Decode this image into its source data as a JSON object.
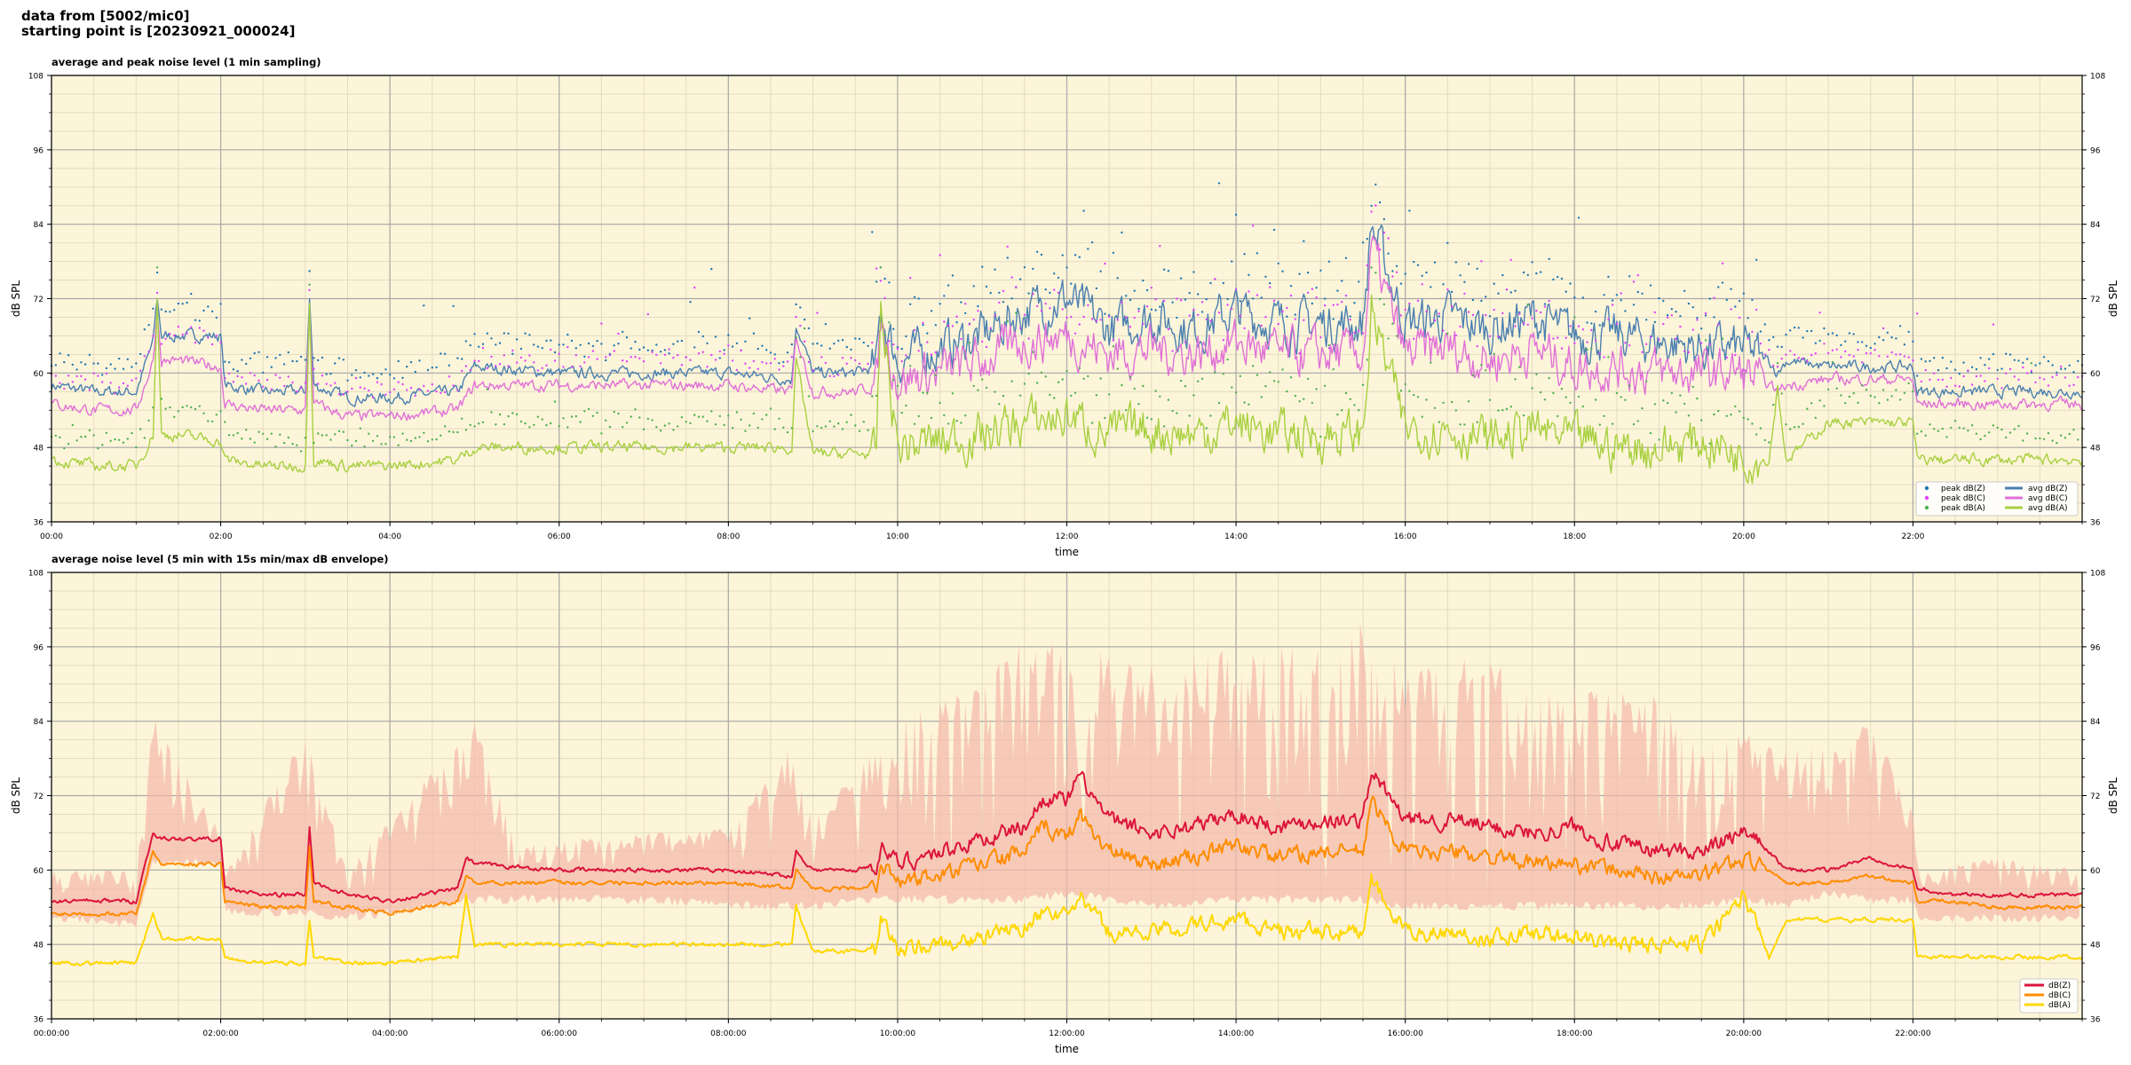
{
  "header": {
    "line1": "data from [5002/mic0]",
    "line2": "starting point is [20230921_000024]"
  },
  "colors": {
    "plot_background": "#fdf5d9",
    "grid_major": "#a9a9a9",
    "grid_minor": "#e4dcc0",
    "zpeak": "#1f77b4",
    "cpeak": "#e040fb",
    "apeak": "#4caf50",
    "zavg": "#4a7fb0",
    "cavg": "#e070d8",
    "aavg": "#a8d040",
    "dbz": "#dc143c",
    "dbc": "#ff8c00",
    "dba": "#ffd700",
    "envelope": "#f4b8a8"
  },
  "chart_data": [
    {
      "type": "line",
      "title": "average and peak noise level (1 min sampling)",
      "xlabel": "time",
      "ylabel": "dB SPL",
      "ylim": [
        36,
        108
      ],
      "xlim_hours": [
        0,
        24
      ],
      "yticks": [
        36,
        48,
        60,
        72,
        84,
        96,
        108
      ],
      "xticks": [
        "00:00",
        "02:00",
        "04:00",
        "06:00",
        "08:00",
        "10:00",
        "12:00",
        "14:00",
        "16:00",
        "18:00",
        "20:00",
        "22:00"
      ],
      "grid": true,
      "legend_position": "bottom-right",
      "series": [
        {
          "name": "peak dB(Z)",
          "kind": "points",
          "color": "#1f77b4",
          "values_from": "avg dB(Z)",
          "offset": 3
        },
        {
          "name": "peak dB(C)",
          "kind": "points",
          "color": "#e040fb",
          "values_from": "avg dB(C)",
          "offset": 3
        },
        {
          "name": "peak dB(A)",
          "kind": "points",
          "color": "#4caf50",
          "values_from": "avg dB(A)",
          "offset": 3
        },
        {
          "name": "avg dB(Z)",
          "kind": "line",
          "color": "#4a7fb0",
          "x_hours": [
            0,
            0.5,
            1.0,
            1.2,
            1.25,
            1.3,
            1.5,
            2.0,
            2.05,
            2.5,
            3.0,
            3.05,
            3.1,
            3.5,
            4.0,
            4.8,
            5.0,
            6.0,
            7.0,
            8.0,
            8.75,
            8.8,
            9.0,
            9.5,
            9.75,
            9.8,
            10.0,
            10.5,
            11.0,
            11.5,
            12.0,
            12.5,
            13.0,
            13.5,
            14.0,
            14.5,
            15.0,
            15.5,
            15.6,
            16.0,
            16.5,
            17.0,
            17.5,
            18.0,
            18.5,
            19.0,
            19.5,
            20.0,
            20.3,
            20.4,
            20.5,
            21.0,
            21.5,
            22.0,
            22.05,
            22.5,
            23.0,
            23.5,
            24.0
          ],
          "values": [
            58,
            57,
            57,
            65,
            72,
            66,
            66,
            66,
            58,
            57,
            57,
            72,
            58,
            56,
            56,
            57,
            61,
            60,
            60,
            60,
            59,
            68,
            60,
            60,
            61,
            70,
            62,
            64,
            66,
            70,
            72,
            67,
            69,
            67,
            70,
            68,
            68,
            68,
            84,
            68,
            69,
            67,
            69,
            66,
            66,
            65,
            64,
            64,
            62,
            60,
            62,
            61,
            61,
            61,
            57,
            57,
            57,
            57,
            57
          ]
        },
        {
          "name": "avg dB(C)",
          "kind": "line",
          "color": "#e070d8",
          "x_hours": [
            0,
            0.5,
            1.0,
            1.2,
            1.25,
            1.3,
            1.5,
            2.0,
            2.05,
            2.5,
            3.0,
            3.05,
            3.1,
            3.5,
            4.0,
            4.8,
            5.0,
            6.0,
            7.0,
            8.0,
            8.75,
            8.8,
            9.0,
            9.5,
            9.75,
            9.8,
            10.0,
            10.5,
            11.0,
            11.5,
            12.0,
            12.5,
            13.0,
            13.5,
            14.0,
            14.5,
            15.0,
            15.5,
            15.6,
            16.0,
            16.5,
            17.0,
            17.5,
            18.0,
            18.5,
            19.0,
            19.5,
            20.0,
            20.3,
            20.4,
            20.5,
            21.0,
            21.5,
            22.0,
            22.05,
            22.5,
            23.0,
            23.5,
            24.0
          ],
          "values": [
            55,
            54,
            54,
            62,
            70,
            62,
            62,
            61,
            55,
            54,
            54,
            70,
            55,
            53,
            53,
            54,
            58,
            58,
            58,
            58,
            57,
            66,
            57,
            57,
            58,
            68,
            59,
            60,
            62,
            65,
            66,
            63,
            64,
            63,
            65,
            63,
            63,
            63,
            80,
            63,
            64,
            62,
            64,
            61,
            61,
            60,
            60,
            60,
            58,
            57,
            58,
            59,
            59,
            59,
            55,
            55,
            55,
            55,
            55
          ]
        },
        {
          "name": "avg dB(A)",
          "kind": "line",
          "color": "#a8d040",
          "x_hours": [
            0,
            0.5,
            1.0,
            1.2,
            1.25,
            1.3,
            1.5,
            2.0,
            2.05,
            2.5,
            3.0,
            3.05,
            3.1,
            3.5,
            4.0,
            4.8,
            5.0,
            6.0,
            7.0,
            8.0,
            8.75,
            8.8,
            9.0,
            9.5,
            9.75,
            9.8,
            10.0,
            10.5,
            11.0,
            11.5,
            12.0,
            12.5,
            13.0,
            13.5,
            14.0,
            14.5,
            15.0,
            15.5,
            15.6,
            16.0,
            16.5,
            17.0,
            17.5,
            18.0,
            18.5,
            19.0,
            19.5,
            20.0,
            20.3,
            20.4,
            20.5,
            21.0,
            21.5,
            22.0,
            22.05,
            22.5,
            23.0,
            23.5,
            24.0
          ],
          "values": [
            46,
            45,
            45,
            50,
            72,
            50,
            50,
            49,
            46,
            45,
            45,
            72,
            46,
            45,
            45,
            46,
            48,
            48,
            48,
            48,
            48,
            62,
            47,
            47,
            47,
            70,
            48,
            49,
            50,
            52,
            53,
            50,
            51,
            50,
            52,
            50,
            50,
            50,
            70,
            51,
            51,
            49,
            51,
            49,
            48,
            48,
            49,
            47,
            46,
            58,
            46,
            52,
            52,
            52,
            46,
            46,
            46,
            46,
            46
          ]
        }
      ]
    },
    {
      "type": "line",
      "title": "average noise level (5 min with 15s min/max dB envelope)",
      "xlabel": "time",
      "ylabel": "dB SPL",
      "ylim": [
        36,
        108
      ],
      "xlim_hours": [
        0,
        24
      ],
      "yticks": [
        36,
        48,
        60,
        72,
        84,
        96,
        108
      ],
      "xticks": [
        "00:00:00",
        "02:00:00",
        "04:00:00",
        "06:00:00",
        "08:00:00",
        "10:00:00",
        "12:00:00",
        "14:00:00",
        "16:00:00",
        "18:00:00",
        "20:00:00",
        "22:00:00"
      ],
      "grid": true,
      "legend_position": "bottom-right",
      "envelope": {
        "x_hours": [
          0,
          1.0,
          1.2,
          2.0,
          2.05,
          3.0,
          3.5,
          5.0,
          5.5,
          7.0,
          8.0,
          8.75,
          9.0,
          9.75,
          10.0,
          11.0,
          11.5,
          12.0,
          12.5,
          13.0,
          14.0,
          15.0,
          15.5,
          16.0,
          17.0,
          17.5,
          18.0,
          19.0,
          19.5,
          20.0,
          20.5,
          21.0,
          21.5,
          22.0,
          22.05,
          23.0,
          24.0
        ],
        "min": [
          53,
          52,
          62,
          62,
          54,
          54,
          53,
          56,
          56,
          56,
          55,
          55,
          55,
          56,
          56,
          56,
          56,
          57,
          56,
          55,
          56,
          56,
          56,
          55,
          55,
          55,
          55,
          55,
          55,
          56,
          55,
          57,
          56,
          56,
          53,
          53,
          53
        ],
        "max": [
          60,
          60,
          85,
          66,
          60,
          82,
          60,
          84,
          64,
          66,
          67,
          80,
          68,
          80,
          84,
          90,
          100,
          96,
          95,
          94,
          96,
          96,
          100,
          92,
          95,
          90,
          90,
          88,
          80,
          82,
          80,
          80,
          84,
          70,
          60,
          62,
          60
        ]
      },
      "series": [
        {
          "name": "dB(Z)",
          "color": "#dc143c",
          "x_hours": [
            0,
            0.5,
            1.0,
            1.2,
            1.3,
            1.5,
            2.0,
            2.05,
            2.5,
            3.0,
            3.05,
            3.1,
            3.5,
            4.0,
            4.8,
            4.9,
            5.0,
            6.0,
            7.0,
            8.0,
            8.75,
            8.8,
            9.0,
            9.5,
            9.75,
            9.8,
            10.0,
            10.5,
            11.0,
            11.5,
            11.75,
            12.0,
            12.15,
            12.5,
            13.0,
            13.5,
            14.0,
            14.5,
            15.0,
            15.5,
            15.6,
            16.0,
            16.5,
            17.0,
            17.5,
            18.0,
            18.5,
            19.0,
            19.5,
            20.0,
            20.3,
            20.5,
            21.0,
            21.5,
            22.0,
            22.05,
            22.5,
            23.0,
            23.5,
            24.0
          ],
          "values": [
            55,
            55,
            55,
            66,
            65,
            65,
            65,
            57,
            56,
            56,
            67,
            58,
            56,
            55,
            57,
            62,
            61,
            60,
            60,
            60,
            59,
            63,
            60,
            60,
            61,
            64,
            61,
            63,
            65,
            67,
            72,
            71,
            75,
            68,
            66,
            67,
            69,
            67,
            68,
            68,
            76,
            68,
            68,
            67,
            66,
            67,
            64,
            63,
            63,
            66,
            63,
            60,
            60,
            62,
            60,
            57,
            56,
            56,
            56,
            56
          ],
          "stroke_width": 2
        },
        {
          "name": "dB(C)",
          "color": "#ff8c00",
          "x_hours": [
            0,
            0.5,
            1.0,
            1.2,
            1.3,
            1.5,
            2.0,
            2.05,
            2.5,
            3.0,
            3.05,
            3.1,
            3.5,
            4.0,
            4.8,
            4.9,
            5.0,
            6.0,
            7.0,
            8.0,
            8.75,
            8.8,
            9.0,
            9.5,
            9.75,
            9.8,
            10.0,
            10.5,
            11.0,
            11.5,
            11.75,
            12.0,
            12.15,
            12.5,
            13.0,
            13.5,
            14.0,
            14.5,
            15.0,
            15.5,
            15.6,
            16.0,
            16.5,
            17.0,
            17.5,
            18.0,
            18.5,
            19.0,
            19.5,
            20.0,
            20.3,
            20.5,
            21.0,
            21.5,
            22.0,
            22.05,
            22.5,
            23.0,
            23.5,
            24.0
          ],
          "values": [
            53,
            53,
            53,
            63,
            61,
            61,
            61,
            55,
            54,
            54,
            64,
            55,
            54,
            53,
            55,
            59,
            58,
            58,
            58,
            58,
            57,
            60,
            57,
            57,
            58,
            61,
            58,
            59,
            61,
            63,
            67,
            65,
            69,
            63,
            61,
            62,
            64,
            62,
            63,
            63,
            71,
            63,
            63,
            62,
            61,
            61,
            60,
            59,
            59,
            62,
            60,
            58,
            58,
            59,
            58,
            55,
            55,
            54,
            54,
            54
          ],
          "stroke_width": 2
        },
        {
          "name": "dB(A)",
          "color": "#ffd700",
          "x_hours": [
            0,
            0.5,
            1.0,
            1.2,
            1.3,
            1.5,
            2.0,
            2.05,
            2.5,
            3.0,
            3.05,
            3.1,
            3.5,
            4.0,
            4.8,
            4.9,
            5.0,
            6.0,
            7.0,
            8.0,
            8.75,
            8.8,
            9.0,
            9.5,
            9.75,
            9.8,
            10.0,
            10.5,
            11.0,
            11.5,
            11.75,
            12.0,
            12.15,
            12.5,
            13.0,
            13.5,
            14.0,
            14.5,
            15.0,
            15.5,
            15.6,
            16.0,
            16.5,
            17.0,
            17.5,
            18.0,
            18.5,
            19.0,
            19.5,
            20.0,
            20.3,
            20.5,
            21.0,
            21.5,
            22.0,
            22.05,
            22.5,
            23.0,
            23.5,
            24.0
          ],
          "values": [
            45,
            45,
            45,
            53,
            49,
            49,
            49,
            46,
            45,
            45,
            52,
            46,
            45,
            45,
            46,
            56,
            48,
            48,
            48,
            48,
            48,
            54,
            47,
            47,
            47,
            52,
            47,
            48,
            49,
            51,
            54,
            52,
            56,
            50,
            50,
            51,
            52,
            50,
            50,
            50,
            58,
            50,
            50,
            49,
            50,
            49,
            48,
            48,
            48,
            56,
            46,
            52,
            52,
            52,
            52,
            46,
            46,
            46,
            46,
            46
          ],
          "stroke_width": 2
        }
      ]
    }
  ]
}
